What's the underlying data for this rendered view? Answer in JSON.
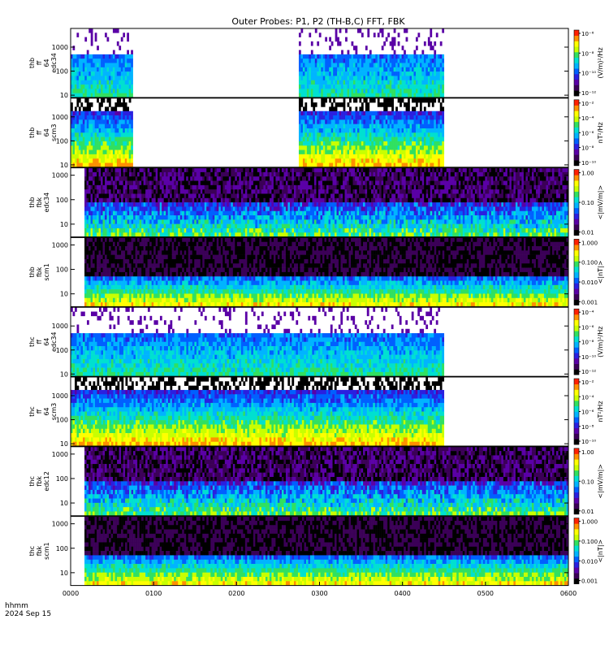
{
  "title": "Outer Probes: P1, P2 (TH-B,C) FFT, FBK",
  "footer": {
    "time_label": "hhmm",
    "date_label": "2024 Sep 15"
  },
  "x_axis": {
    "ticks": [
      "0000",
      "0100",
      "0200",
      "0300",
      "0400",
      "0500",
      "0600"
    ]
  },
  "colors": {
    "palette": [
      "#000000",
      "#3b0057",
      "#5a00a6",
      "#2a20e0",
      "#0060ff",
      "#00b4ff",
      "#00e0d0",
      "#30e060",
      "#c8ff00",
      "#ffff00",
      "#ff9000",
      "#ff2000"
    ]
  },
  "chart_data": [
    {
      "type": "heatmap",
      "panel": "thb-ff-e34",
      "label": [
        "thb",
        "ff",
        "64",
        "edc34"
      ],
      "y_ticks": [
        "10",
        "100",
        "1000"
      ],
      "y_log": true,
      "ylim": [
        8,
        6000
      ],
      "data_intervals_hhmm": [
        [
          "0000",
          "0045"
        ],
        [
          "0245",
          "0430"
        ]
      ],
      "colorbar": {
        "ticks": [
          "10⁻⁶",
          "10⁻⁸",
          "10⁻¹⁰",
          "10⁻¹²"
        ],
        "unit": "(V/m)²/Hz"
      }
    },
    {
      "type": "heatmap",
      "panel": "thb-ff-scm3",
      "label": [
        "thb",
        "ff",
        "64",
        "scm3"
      ],
      "y_ticks": [
        "10",
        "100",
        "1000"
      ],
      "y_log": true,
      "ylim": [
        8,
        6000
      ],
      "data_intervals_hhmm": [
        [
          "0000",
          "0045"
        ],
        [
          "0245",
          "0430"
        ]
      ],
      "colorbar": {
        "ticks": [
          "10⁻²",
          "10⁻⁴",
          "10⁻⁶",
          "10⁻⁸",
          "10⁻¹⁰"
        ],
        "unit": "nT²/Hz"
      }
    },
    {
      "type": "heatmap",
      "panel": "thb-fbk-e34",
      "label": [
        "thb",
        "fbk",
        "edc34"
      ],
      "y_ticks": [
        "10",
        "100",
        "1000"
      ],
      "y_log": true,
      "ylim": [
        3,
        2000
      ],
      "data_intervals_hhmm": [
        [
          "0010",
          "0600"
        ]
      ],
      "colorbar": {
        "ticks": [
          "1.00",
          "0.10",
          "0.01"
        ],
        "unit": "<|mV/m|>"
      }
    },
    {
      "type": "heatmap",
      "panel": "thb-fbk-scm1",
      "label": [
        "thb",
        "fbk",
        "scm1"
      ],
      "y_ticks": [
        "10",
        "100",
        "1000"
      ],
      "y_log": true,
      "ylim": [
        3,
        2000
      ],
      "data_intervals_hhmm": [
        [
          "0010",
          "0600"
        ]
      ],
      "colorbar": {
        "ticks": [
          "1.000",
          "0.100",
          "0.010",
          "0.001"
        ],
        "unit": "<|nT|>"
      }
    },
    {
      "type": "heatmap",
      "panel": "thc-ff-e34",
      "label": [
        "thc",
        "ff",
        "64",
        "edc34"
      ],
      "y_ticks": [
        "10",
        "100",
        "1000"
      ],
      "y_log": true,
      "ylim": [
        8,
        6000
      ],
      "data_intervals_hhmm": [
        [
          "0000",
          "0430"
        ]
      ],
      "colorbar": {
        "ticks": [
          "10⁻⁴",
          "10⁻⁶",
          "10⁻⁸",
          "10⁻¹⁰",
          "10⁻¹²"
        ],
        "unit": "(V/m)²/Hz"
      }
    },
    {
      "type": "heatmap",
      "panel": "thc-ff-scm3",
      "label": [
        "thc",
        "ff",
        "64",
        "scm3"
      ],
      "y_ticks": [
        "10",
        "100",
        "1000"
      ],
      "y_log": true,
      "ylim": [
        8,
        6000
      ],
      "data_intervals_hhmm": [
        [
          "0000",
          "0430"
        ]
      ],
      "colorbar": {
        "ticks": [
          "10⁻²",
          "10⁻⁴",
          "10⁻⁶",
          "10⁻⁸",
          "10⁻¹⁰"
        ],
        "unit": "nT²/Hz"
      }
    },
    {
      "type": "heatmap",
      "panel": "thc-fbk-e12",
      "label": [
        "thc",
        "fbk",
        "edc12"
      ],
      "y_ticks": [
        "10",
        "100",
        "1000"
      ],
      "y_log": true,
      "ylim": [
        3,
        2000
      ],
      "data_intervals_hhmm": [
        [
          "0010",
          "0600"
        ]
      ],
      "colorbar": {
        "ticks": [
          "1.00",
          "0.10",
          "0.01"
        ],
        "unit": "<|mV/m|>"
      }
    },
    {
      "type": "heatmap",
      "panel": "thc-fbk-scm1",
      "label": [
        "thc",
        "fbk",
        "scm1"
      ],
      "y_ticks": [
        "10",
        "100",
        "1000"
      ],
      "y_log": true,
      "ylim": [
        3,
        2000
      ],
      "data_intervals_hhmm": [
        [
          "0010",
          "0600"
        ]
      ],
      "colorbar": {
        "ticks": [
          "1.000",
          "0.100",
          "0.010",
          "0.001"
        ],
        "unit": "<|nT|>"
      }
    }
  ]
}
